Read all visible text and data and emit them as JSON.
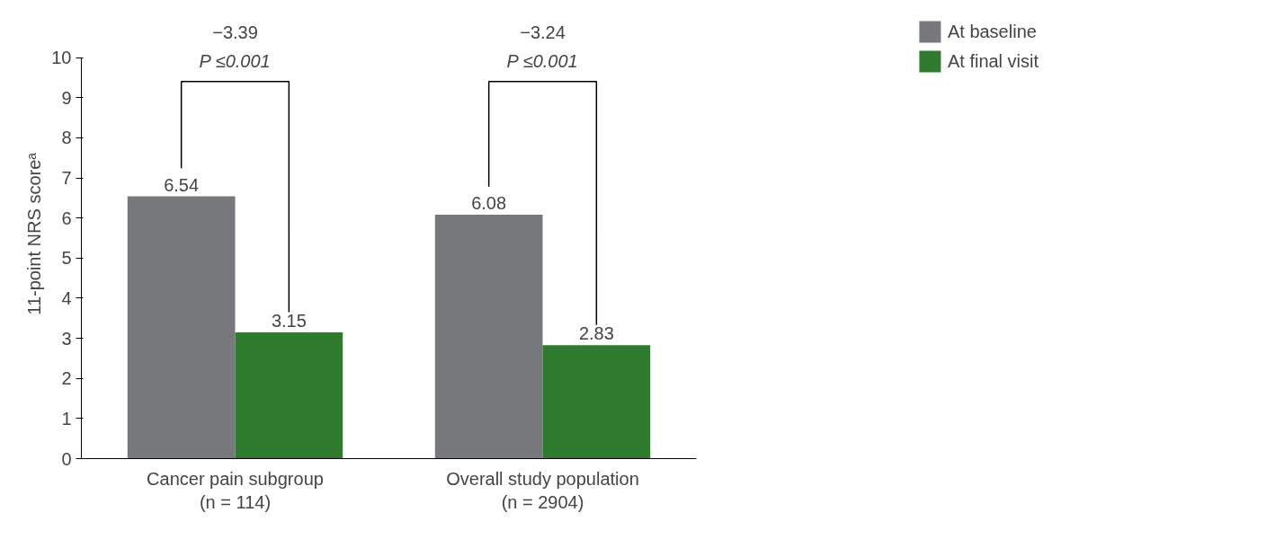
{
  "chart_data": {
    "type": "bar",
    "ylabel": "11-point NRS scoreᵃ",
    "categories": [
      "Cancer pain subgroup\n(n = 114)",
      "Overall study population\n(n = 2904)"
    ],
    "series": [
      {
        "name": "At baseline",
        "color": "#77787b",
        "values": [
          6.54,
          6.08
        ]
      },
      {
        "name": "At final visit",
        "color": "#2e7a2e",
        "values": [
          3.15,
          2.83
        ]
      }
    ],
    "ylim": [
      0,
      10
    ],
    "yticks": [
      0,
      1,
      2,
      3,
      4,
      5,
      6,
      7,
      8,
      9,
      10
    ],
    "grid": false,
    "legend": "top right",
    "data_labels": true,
    "annotations": [
      "−3.39",
      "P ≤0.001",
      "−3.24",
      "P ≤0.001"
    ]
  }
}
